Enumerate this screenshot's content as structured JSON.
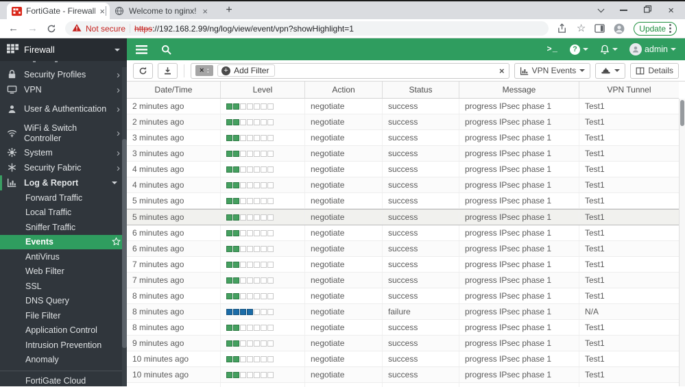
{
  "browser": {
    "tabs": [
      {
        "title": "FortiGate - Firewall"
      },
      {
        "title": "Welcome to nginx!"
      }
    ],
    "not_secure": "Not secure",
    "url_scheme": "https",
    "url_rest": "://192.168.2.99/ng/log/view/event/vpn?showHighlight=1",
    "update_label": "Update"
  },
  "app": {
    "sidebar": {
      "title": "Firewall",
      "items": [
        {
          "label": "Security Profiles",
          "icon": "lock-icon",
          "two_line": false
        },
        {
          "label": "VPN",
          "icon": "monitor-icon",
          "two_line": false
        },
        {
          "label": "User & Authentication",
          "icon": "user-icon",
          "two_line": true
        },
        {
          "label": "WiFi & Switch Controller",
          "icon": "wifi-icon",
          "two_line": true
        },
        {
          "label": "System",
          "icon": "gear-icon",
          "two_line": false
        },
        {
          "label": "Security Fabric",
          "icon": "fabric-icon",
          "two_line": false
        },
        {
          "label": "Log & Report",
          "icon": "chart-icon",
          "two_line": false,
          "expanded": true
        }
      ],
      "submenu": [
        {
          "label": "Forward Traffic"
        },
        {
          "label": "Local Traffic"
        },
        {
          "label": "Sniffer Traffic"
        },
        {
          "label": "Events",
          "selected": true
        },
        {
          "label": "AntiVirus"
        },
        {
          "label": "Web Filter"
        },
        {
          "label": "SSL"
        },
        {
          "label": "DNS Query"
        },
        {
          "label": "File Filter"
        },
        {
          "label": "Application Control"
        },
        {
          "label": "Intrusion Prevention"
        },
        {
          "label": "Anomaly"
        }
      ],
      "cloud_item": "FortiGate Cloud Reports"
    },
    "header": {
      "admin": "admin"
    },
    "toolbar": {
      "chip_close": "×",
      "chip_colon": ":",
      "add_filter": "Add Filter",
      "vpn_events": "VPN Events",
      "details": "Details"
    },
    "table": {
      "columns": [
        "Date/Time",
        "Level",
        "Action",
        "Status",
        "Message",
        "VPN Tunnel"
      ],
      "level_segments": 7,
      "rows": [
        {
          "time": "2 minutes ago",
          "level": 2,
          "severity": "green",
          "action": "negotiate",
          "status": "success",
          "message": "progress IPsec phase 1",
          "tunnel": "Test1"
        },
        {
          "time": "2 minutes ago",
          "level": 2,
          "severity": "green",
          "action": "negotiate",
          "status": "success",
          "message": "progress IPsec phase 1",
          "tunnel": "Test1"
        },
        {
          "time": "3 minutes ago",
          "level": 2,
          "severity": "green",
          "action": "negotiate",
          "status": "success",
          "message": "progress IPsec phase 1",
          "tunnel": "Test1"
        },
        {
          "time": "3 minutes ago",
          "level": 2,
          "severity": "green",
          "action": "negotiate",
          "status": "success",
          "message": "progress IPsec phase 1",
          "tunnel": "Test1"
        },
        {
          "time": "4 minutes ago",
          "level": 2,
          "severity": "green",
          "action": "negotiate",
          "status": "success",
          "message": "progress IPsec phase 1",
          "tunnel": "Test1"
        },
        {
          "time": "4 minutes ago",
          "level": 2,
          "severity": "green",
          "action": "negotiate",
          "status": "success",
          "message": "progress IPsec phase 1",
          "tunnel": "Test1"
        },
        {
          "time": "5 minutes ago",
          "level": 2,
          "severity": "green",
          "action": "negotiate",
          "status": "success",
          "message": "progress IPsec phase 1",
          "tunnel": "Test1"
        },
        {
          "time": "5 minutes ago",
          "level": 2,
          "severity": "green",
          "action": "negotiate",
          "status": "success",
          "message": "progress IPsec phase 1",
          "tunnel": "Test1",
          "highlighted": true
        },
        {
          "time": "6 minutes ago",
          "level": 2,
          "severity": "green",
          "action": "negotiate",
          "status": "success",
          "message": "progress IPsec phase 1",
          "tunnel": "Test1"
        },
        {
          "time": "6 minutes ago",
          "level": 2,
          "severity": "green",
          "action": "negotiate",
          "status": "success",
          "message": "progress IPsec phase 1",
          "tunnel": "Test1"
        },
        {
          "time": "7 minutes ago",
          "level": 2,
          "severity": "green",
          "action": "negotiate",
          "status": "success",
          "message": "progress IPsec phase 1",
          "tunnel": "Test1"
        },
        {
          "time": "7 minutes ago",
          "level": 2,
          "severity": "green",
          "action": "negotiate",
          "status": "success",
          "message": "progress IPsec phase 1",
          "tunnel": "Test1"
        },
        {
          "time": "8 minutes ago",
          "level": 2,
          "severity": "green",
          "action": "negotiate",
          "status": "success",
          "message": "progress IPsec phase 1",
          "tunnel": "Test1"
        },
        {
          "time": "8 minutes ago",
          "level": 4,
          "severity": "blue",
          "action": "negotiate",
          "status": "failure",
          "message": "progress IPsec phase 1",
          "tunnel": "N/A"
        },
        {
          "time": "8 minutes ago",
          "level": 2,
          "severity": "green",
          "action": "negotiate",
          "status": "success",
          "message": "progress IPsec phase 1",
          "tunnel": "Test1"
        },
        {
          "time": "9 minutes ago",
          "level": 2,
          "severity": "green",
          "action": "negotiate",
          "status": "success",
          "message": "progress IPsec phase 1",
          "tunnel": "Test1"
        },
        {
          "time": "10 minutes ago",
          "level": 2,
          "severity": "green",
          "action": "negotiate",
          "status": "success",
          "message": "progress IPsec phase 1",
          "tunnel": "Test1"
        },
        {
          "time": "10 minutes ago",
          "level": 2,
          "severity": "green",
          "action": "negotiate",
          "status": "success",
          "message": "progress IPsec phase 1",
          "tunnel": "Test1"
        }
      ]
    }
  },
  "colors": {
    "accent_green": "#2f9d5f",
    "level_green": "#44a05f",
    "level_blue": "#1b6ca8",
    "not_secure_red": "#c5221f",
    "update_green": "#1e8e3e"
  }
}
